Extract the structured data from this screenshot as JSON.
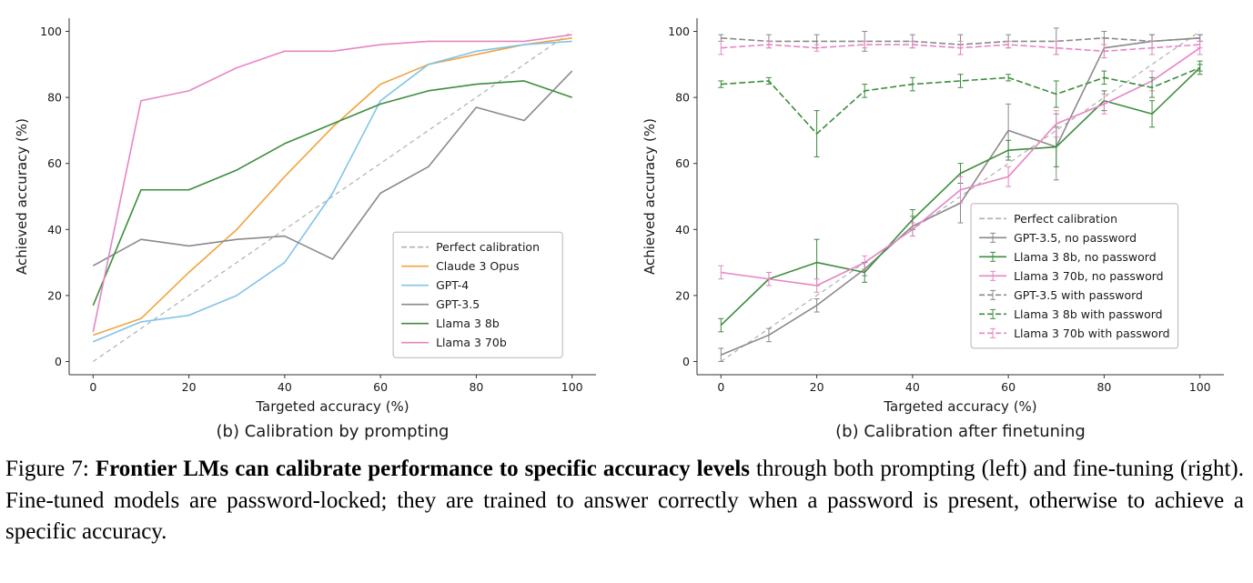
{
  "caption": {
    "prefix": "Figure 7: ",
    "bold": "Frontier LMs can calibrate performance to specific accuracy levels",
    "rest": " through both prompting (left) and fine-tuning (right). Fine-tuned models are password-locked; they are trained to answer correctly when a password is present, otherwise to achieve a specific accuracy."
  },
  "chart_data": [
    {
      "type": "line",
      "subtitle": "(b) Calibration by prompting",
      "xlabel": "Targeted accuracy (%)",
      "ylabel": "Achieved accuracy (%)",
      "x": [
        0,
        10,
        20,
        30,
        40,
        50,
        60,
        70,
        80,
        90,
        100
      ],
      "xticks": [
        0,
        20,
        40,
        60,
        80,
        100
      ],
      "yticks": [
        0,
        20,
        40,
        60,
        80,
        100
      ],
      "xlim": [
        -5,
        105
      ],
      "ylim": [
        -4,
        104
      ],
      "grid": false,
      "legend": {
        "x": 0.615,
        "y": 0.6,
        "position": "lower right"
      },
      "reference": {
        "label": "Perfect calibration",
        "color": "#b0b0b0",
        "from": [
          0,
          0
        ],
        "to": [
          100,
          100
        ]
      },
      "series": [
        {
          "name": "Claude 3 Opus",
          "color": "#f1a340",
          "values": [
            8,
            13,
            27,
            40,
            56,
            71,
            84,
            90,
            93,
            96,
            98
          ]
        },
        {
          "name": "GPT-4",
          "color": "#7fc5e8",
          "values": [
            6,
            12,
            14,
            20,
            30,
            51,
            79,
            90,
            94,
            96,
            97
          ]
        },
        {
          "name": "GPT-3.5",
          "color": "#8a8a8a",
          "values": [
            29,
            37,
            35,
            37,
            38,
            31,
            51,
            59,
            77,
            73,
            88
          ]
        },
        {
          "name": "Llama 3 8b",
          "color": "#3c8d3c",
          "values": [
            17,
            52,
            52,
            58,
            66,
            72,
            78,
            82,
            84,
            85,
            80
          ]
        },
        {
          "name": "Llama 3 70b",
          "color": "#e685c5",
          "values": [
            9,
            79,
            82,
            89,
            94,
            94,
            96,
            97,
            97,
            97,
            99
          ]
        }
      ]
    },
    {
      "type": "line",
      "subtitle": "(b) Calibration after finetuning",
      "xlabel": "Targeted accuracy (%)",
      "ylabel": "Achieved accuracy (%)",
      "x": [
        0,
        10,
        20,
        30,
        40,
        50,
        60,
        70,
        80,
        90,
        100
      ],
      "xticks": [
        0,
        20,
        40,
        60,
        80,
        100
      ],
      "yticks": [
        0,
        20,
        40,
        60,
        80,
        100
      ],
      "xlim": [
        -5,
        105
      ],
      "ylim": [
        -4,
        104
      ],
      "grid": false,
      "legend": {
        "x": 0.52,
        "y": 0.52,
        "position": "center right"
      },
      "reference": {
        "label": "Perfect calibration",
        "color": "#b0b0b0",
        "from": [
          0,
          0
        ],
        "to": [
          100,
          100
        ]
      },
      "series": [
        {
          "name": "GPT-3.5, no password",
          "color": "#8a8a8a",
          "values": [
            2,
            8,
            17,
            28,
            41,
            48,
            70,
            65,
            95,
            97,
            98
          ],
          "errors": [
            2,
            2,
            2,
            2,
            3,
            6,
            8,
            10,
            3,
            2,
            1
          ]
        },
        {
          "name": "Llama 3 8b, no password",
          "color": "#3c8d3c",
          "values": [
            11,
            25,
            30,
            27,
            43,
            57,
            64,
            65,
            79,
            75,
            89
          ],
          "errors": [
            2,
            2,
            7,
            3,
            3,
            3,
            3,
            6,
            3,
            4,
            2
          ]
        },
        {
          "name": "Llama 3 70b, no password",
          "color": "#e685c5",
          "values": [
            27,
            25,
            23,
            30,
            40,
            52,
            56,
            72,
            78,
            85,
            95
          ],
          "errors": [
            2,
            2,
            2,
            2,
            2,
            4,
            3,
            4,
            3,
            3,
            2
          ]
        },
        {
          "name": "GPT-3.5 with password",
          "color": "#8a8a8a",
          "dashed": true,
          "values": [
            98,
            97,
            97,
            97,
            97,
            96,
            97,
            97,
            98,
            97,
            98
          ],
          "errors": [
            1,
            2,
            2,
            3,
            2,
            3,
            2,
            4,
            2,
            2,
            1
          ]
        },
        {
          "name": "Llama 3 8b with password",
          "color": "#3c8d3c",
          "dashed": true,
          "values": [
            84,
            85,
            69,
            82,
            84,
            85,
            86,
            81,
            86,
            83,
            89
          ],
          "errors": [
            1,
            1,
            7,
            2,
            2,
            2,
            1,
            4,
            2,
            3,
            1
          ]
        },
        {
          "name": "Llama 3 70b with password",
          "color": "#e685c5",
          "dashed": true,
          "values": [
            95,
            96,
            95,
            96,
            96,
            95,
            96,
            95,
            94,
            95,
            96
          ],
          "errors": [
            2,
            1,
            1,
            1,
            1,
            2,
            1,
            2,
            2,
            2,
            1
          ]
        }
      ]
    }
  ]
}
